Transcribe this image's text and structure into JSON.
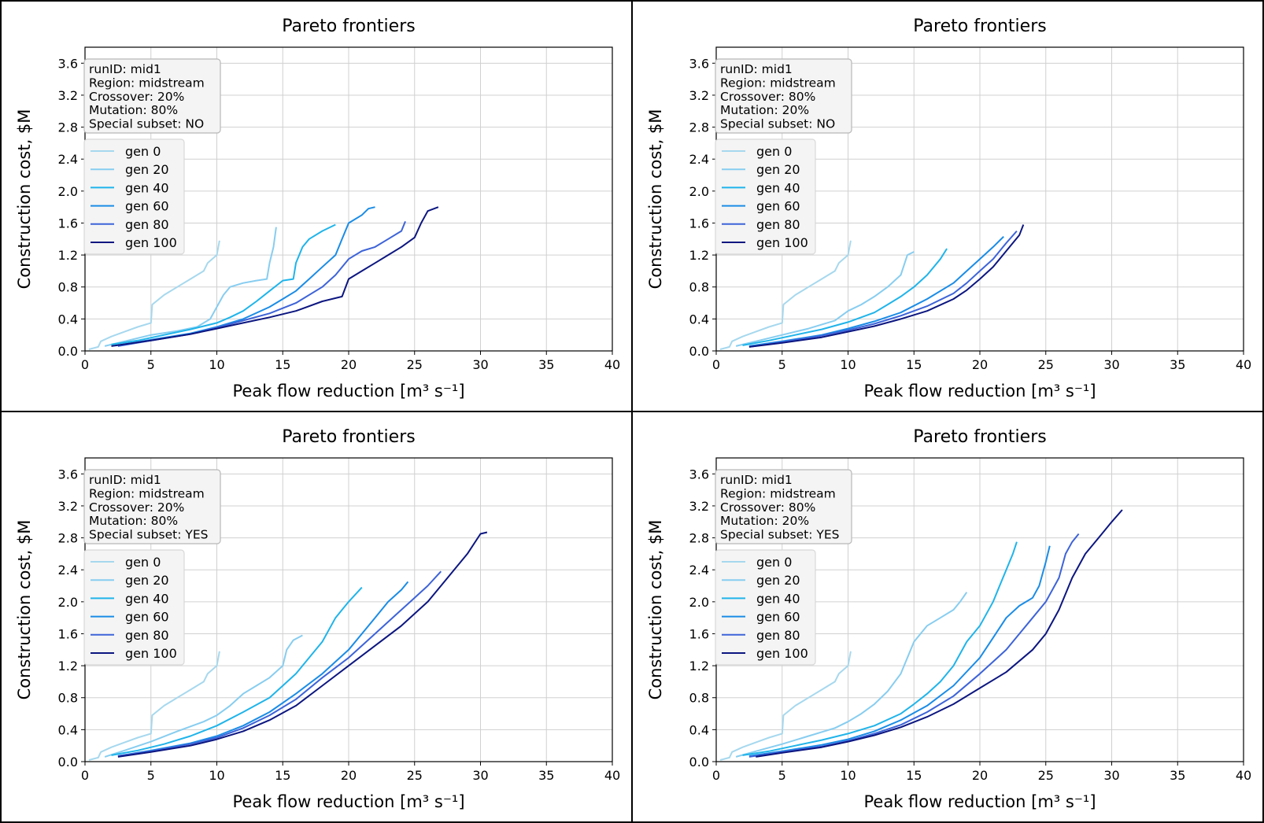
{
  "chart_data": [
    {
      "type": "line",
      "title": "Pareto frontiers",
      "xlabel": "Peak flow reduction [m³ s⁻¹]",
      "ylabel": "Construction cost, $M",
      "xlim": [
        0,
        40
      ],
      "ylim": [
        0,
        3.8
      ],
      "xticks": [
        "0",
        "5",
        "10",
        "15",
        "20",
        "25",
        "30",
        "35",
        "40"
      ],
      "yticks": [
        "0.0",
        "0.4",
        "0.8",
        "1.2",
        "1.6",
        "2.0",
        "2.4",
        "2.8",
        "3.2",
        "3.6"
      ],
      "grid": true,
      "info": [
        "runID: mid1",
        "Region: midstream",
        "Crossover: 20%",
        "Mutation: 80%",
        "Special subset: NO"
      ],
      "legend_position": "upper-left",
      "series": [
        {
          "name": "gen 0",
          "color": "#a6d8ee",
          "x": [
            0.3,
            1,
            1.2,
            2,
            3,
            4,
            5,
            5.1,
            6,
            7,
            7.5,
            8,
            9,
            9.3,
            10,
            10.2
          ],
          "y": [
            0.02,
            0.05,
            0.12,
            0.18,
            0.24,
            0.3,
            0.35,
            0.58,
            0.7,
            0.8,
            0.85,
            0.9,
            1.0,
            1.1,
            1.2,
            1.38
          ]
        },
        {
          "name": "gen 20",
          "color": "#87cdf0",
          "x": [
            1.5,
            3,
            5,
            7,
            8.5,
            9.5,
            10,
            10.5,
            11,
            12,
            13,
            13.8,
            14,
            14.3,
            14.5
          ],
          "y": [
            0.06,
            0.12,
            0.2,
            0.25,
            0.3,
            0.4,
            0.55,
            0.7,
            0.8,
            0.85,
            0.88,
            0.9,
            1.1,
            1.3,
            1.55
          ]
        },
        {
          "name": "gen 40",
          "color": "#1fb4ea",
          "x": [
            2,
            4,
            6,
            8,
            10,
            11,
            12,
            13,
            14,
            15,
            15.8,
            16,
            16.5,
            17,
            18,
            19
          ],
          "y": [
            0.08,
            0.13,
            0.2,
            0.27,
            0.35,
            0.42,
            0.5,
            0.62,
            0.75,
            0.88,
            0.9,
            1.1,
            1.3,
            1.4,
            1.5,
            1.58
          ]
        },
        {
          "name": "gen 60",
          "color": "#1a8ce6",
          "x": [
            2.5,
            5,
            8,
            10,
            12,
            14,
            15,
            16,
            17,
            18,
            19,
            19.5,
            20,
            21,
            21.5,
            22
          ],
          "y": [
            0.07,
            0.14,
            0.22,
            0.3,
            0.4,
            0.55,
            0.65,
            0.75,
            0.9,
            1.05,
            1.2,
            1.4,
            1.6,
            1.7,
            1.78,
            1.8
          ]
        },
        {
          "name": "gen 80",
          "color": "#3d63d8",
          "x": [
            2.5,
            5,
            8,
            10,
            12,
            14,
            16,
            18,
            19,
            20,
            21,
            22,
            23,
            24,
            24.3
          ],
          "y": [
            0.06,
            0.13,
            0.21,
            0.29,
            0.38,
            0.47,
            0.6,
            0.8,
            0.95,
            1.15,
            1.25,
            1.3,
            1.4,
            1.5,
            1.62
          ]
        },
        {
          "name": "gen 100",
          "color": "#0c1680",
          "x": [
            2,
            5,
            8,
            10,
            12,
            14,
            16,
            18,
            19.5,
            20,
            21,
            22,
            23,
            24,
            25,
            25.5,
            26,
            26.8
          ],
          "y": [
            0.06,
            0.13,
            0.21,
            0.28,
            0.35,
            0.42,
            0.5,
            0.62,
            0.68,
            0.9,
            1.0,
            1.1,
            1.2,
            1.3,
            1.42,
            1.6,
            1.75,
            1.8
          ]
        }
      ]
    },
    {
      "type": "line",
      "title": "Pareto frontiers",
      "xlabel": "Peak flow reduction [m³ s⁻¹]",
      "ylabel": "Construction cost, $M",
      "xlim": [
        0,
        40
      ],
      "ylim": [
        0,
        3.8
      ],
      "xticks": [
        "0",
        "5",
        "10",
        "15",
        "20",
        "25",
        "30",
        "35",
        "40"
      ],
      "yticks": [
        "0.0",
        "0.4",
        "0.8",
        "1.2",
        "1.6",
        "2.0",
        "2.4",
        "2.8",
        "3.2",
        "3.6"
      ],
      "grid": true,
      "info": [
        "runID: mid1",
        "Region: midstream",
        "Crossover: 80%",
        "Mutation: 20%",
        "Special subset: NO"
      ],
      "legend_position": "upper-left",
      "series": [
        {
          "name": "gen 0",
          "color": "#a6d8ee",
          "x": [
            0.3,
            1,
            1.2,
            2,
            3,
            4,
            5,
            5.1,
            6,
            7,
            7.5,
            8,
            9,
            9.3,
            10,
            10.2
          ],
          "y": [
            0.02,
            0.05,
            0.12,
            0.18,
            0.24,
            0.3,
            0.35,
            0.58,
            0.7,
            0.8,
            0.85,
            0.9,
            1.0,
            1.1,
            1.2,
            1.38
          ]
        },
        {
          "name": "gen 20",
          "color": "#87cdf0",
          "x": [
            1.5,
            3,
            5,
            7,
            9,
            10,
            11,
            12,
            13,
            14,
            14.5,
            15
          ],
          "y": [
            0.06,
            0.12,
            0.2,
            0.28,
            0.38,
            0.5,
            0.58,
            0.68,
            0.8,
            0.95,
            1.2,
            1.24
          ]
        },
        {
          "name": "gen 40",
          "color": "#1fb4ea",
          "x": [
            2,
            4,
            6,
            8,
            10,
            12,
            13,
            14,
            15,
            16,
            17,
            17.5
          ],
          "y": [
            0.07,
            0.13,
            0.2,
            0.27,
            0.36,
            0.48,
            0.58,
            0.68,
            0.8,
            0.95,
            1.15,
            1.28
          ]
        },
        {
          "name": "gen 60",
          "color": "#1a8ce6",
          "x": [
            2.5,
            5,
            8,
            10,
            12,
            14,
            16,
            18,
            19,
            20,
            21,
            21.8
          ],
          "y": [
            0.06,
            0.12,
            0.2,
            0.28,
            0.37,
            0.48,
            0.65,
            0.85,
            1.0,
            1.15,
            1.3,
            1.43
          ]
        },
        {
          "name": "gen 80",
          "color": "#3d63d8",
          "x": [
            2.5,
            5,
            8,
            10,
            12,
            14,
            16,
            18,
            19,
            20,
            21,
            22,
            22.8
          ],
          "y": [
            0.05,
            0.11,
            0.19,
            0.26,
            0.34,
            0.44,
            0.56,
            0.72,
            0.85,
            1.0,
            1.15,
            1.35,
            1.5
          ]
        },
        {
          "name": "gen 100",
          "color": "#0c1680",
          "x": [
            2.5,
            5,
            8,
            10,
            12,
            14,
            16,
            18,
            19,
            20,
            21,
            22,
            23,
            23.3
          ],
          "y": [
            0.05,
            0.1,
            0.17,
            0.24,
            0.31,
            0.4,
            0.5,
            0.65,
            0.76,
            0.9,
            1.05,
            1.25,
            1.45,
            1.58
          ]
        }
      ]
    },
    {
      "type": "line",
      "title": "Pareto frontiers",
      "xlabel": "Peak flow reduction [m³ s⁻¹]",
      "ylabel": "Construction cost, $M",
      "xlim": [
        0,
        40
      ],
      "ylim": [
        0,
        3.8
      ],
      "xticks": [
        "0",
        "5",
        "10",
        "15",
        "20",
        "25",
        "30",
        "35",
        "40"
      ],
      "yticks": [
        "0.0",
        "0.4",
        "0.8",
        "1.2",
        "1.6",
        "2.0",
        "2.4",
        "2.8",
        "3.2",
        "3.6"
      ],
      "grid": true,
      "info": [
        "runID: mid1",
        "Region: midstream",
        "Crossover: 20%",
        "Mutation: 80%",
        "Special subset: YES"
      ],
      "legend_position": "upper-left",
      "series": [
        {
          "name": "gen 0",
          "color": "#a6d8ee",
          "x": [
            0.3,
            1,
            1.2,
            2,
            3,
            4,
            5,
            5.1,
            6,
            7,
            7.5,
            8,
            9,
            9.3,
            10,
            10.2
          ],
          "y": [
            0.02,
            0.05,
            0.12,
            0.18,
            0.24,
            0.3,
            0.35,
            0.58,
            0.7,
            0.8,
            0.85,
            0.9,
            1.0,
            1.1,
            1.2,
            1.38
          ]
        },
        {
          "name": "gen 20",
          "color": "#87cdf0",
          "x": [
            1.5,
            3,
            5,
            7,
            9,
            10,
            11,
            12,
            13,
            14,
            15,
            15.3,
            15.8,
            16.5
          ],
          "y": [
            0.06,
            0.14,
            0.25,
            0.38,
            0.5,
            0.58,
            0.7,
            0.85,
            0.95,
            1.05,
            1.2,
            1.4,
            1.52,
            1.58
          ]
        },
        {
          "name": "gen 40",
          "color": "#1fb4ea",
          "x": [
            2,
            4,
            6,
            8,
            10,
            12,
            14,
            15,
            16,
            17,
            18,
            19,
            19.5,
            20,
            21
          ],
          "y": [
            0.08,
            0.14,
            0.22,
            0.32,
            0.45,
            0.62,
            0.8,
            0.95,
            1.1,
            1.3,
            1.5,
            1.8,
            1.9,
            2.0,
            2.18
          ]
        },
        {
          "name": "gen 60",
          "color": "#1a8ce6",
          "x": [
            2.5,
            5,
            8,
            10,
            12,
            14,
            16,
            18,
            20,
            21,
            22,
            23,
            24,
            24.5
          ],
          "y": [
            0.07,
            0.14,
            0.23,
            0.32,
            0.45,
            0.62,
            0.85,
            1.1,
            1.4,
            1.6,
            1.8,
            2.0,
            2.15,
            2.25
          ]
        },
        {
          "name": "gen 80",
          "color": "#3d63d8",
          "x": [
            2.5,
            5,
            8,
            10,
            12,
            14,
            16,
            18,
            20,
            22,
            24,
            25,
            26,
            27
          ],
          "y": [
            0.07,
            0.13,
            0.22,
            0.3,
            0.42,
            0.58,
            0.78,
            1.05,
            1.3,
            1.6,
            1.9,
            2.05,
            2.2,
            2.38
          ]
        },
        {
          "name": "gen 100",
          "color": "#0c1680",
          "x": [
            2.5,
            5,
            8,
            10,
            12,
            14,
            16,
            18,
            20,
            22,
            24,
            26,
            27,
            28,
            29,
            30,
            30.5
          ],
          "y": [
            0.06,
            0.12,
            0.2,
            0.28,
            0.38,
            0.52,
            0.7,
            0.95,
            1.2,
            1.45,
            1.7,
            2.0,
            2.2,
            2.4,
            2.6,
            2.85,
            2.87
          ]
        }
      ]
    },
    {
      "type": "line",
      "title": "Pareto frontiers",
      "xlabel": "Peak flow reduction [m³ s⁻¹]",
      "ylabel": "Construction cost, $M",
      "xlim": [
        0,
        40
      ],
      "ylim": [
        0,
        3.8
      ],
      "xticks": [
        "0",
        "5",
        "10",
        "15",
        "20",
        "25",
        "30",
        "35",
        "40"
      ],
      "yticks": [
        "0.0",
        "0.4",
        "0.8",
        "1.2",
        "1.6",
        "2.0",
        "2.4",
        "2.8",
        "3.2",
        "3.6"
      ],
      "grid": true,
      "info": [
        "runID: mid1",
        "Region: midstream",
        "Crossover: 80%",
        "Mutation: 20%",
        "Special subset: YES"
      ],
      "legend_position": "upper-left",
      "series": [
        {
          "name": "gen 0",
          "color": "#a6d8ee",
          "x": [
            0.3,
            1,
            1.2,
            2,
            3,
            4,
            5,
            5.1,
            6,
            7,
            7.5,
            8,
            9,
            9.3,
            10,
            10.2
          ],
          "y": [
            0.02,
            0.05,
            0.12,
            0.18,
            0.24,
            0.3,
            0.35,
            0.58,
            0.7,
            0.8,
            0.85,
            0.9,
            1.0,
            1.1,
            1.2,
            1.38
          ]
        },
        {
          "name": "gen 20",
          "color": "#87cdf0",
          "x": [
            1.5,
            3,
            5,
            7,
            9,
            10,
            11,
            12,
            13,
            14,
            15,
            16,
            17,
            18,
            18.5,
            19
          ],
          "y": [
            0.06,
            0.13,
            0.22,
            0.32,
            0.42,
            0.5,
            0.6,
            0.72,
            0.88,
            1.1,
            1.5,
            1.7,
            1.8,
            1.9,
            2.0,
            2.12
          ]
        },
        {
          "name": "gen 40",
          "color": "#1fb4ea",
          "x": [
            2,
            4,
            6,
            8,
            10,
            12,
            14,
            15,
            16,
            17,
            18,
            19,
            20,
            21,
            21.5,
            22,
            22.5,
            22.8
          ],
          "y": [
            0.08,
            0.13,
            0.2,
            0.27,
            0.35,
            0.45,
            0.6,
            0.72,
            0.85,
            1.0,
            1.2,
            1.5,
            1.7,
            2.0,
            2.2,
            2.4,
            2.6,
            2.75
          ]
        },
        {
          "name": "gen 60",
          "color": "#1a8ce6",
          "x": [
            2.5,
            5,
            8,
            10,
            12,
            14,
            16,
            18,
            20,
            21,
            22,
            23,
            24,
            24.5,
            25,
            25.3
          ],
          "y": [
            0.07,
            0.13,
            0.21,
            0.28,
            0.38,
            0.52,
            0.7,
            0.95,
            1.3,
            1.55,
            1.8,
            1.95,
            2.05,
            2.2,
            2.5,
            2.7
          ]
        },
        {
          "name": "gen 80",
          "color": "#3d63d8",
          "x": [
            2.5,
            5,
            8,
            10,
            12,
            14,
            16,
            18,
            20,
            22,
            23,
            24,
            25,
            26,
            26.5,
            27,
            27.5
          ],
          "y": [
            0.06,
            0.12,
            0.19,
            0.26,
            0.35,
            0.46,
            0.62,
            0.82,
            1.1,
            1.4,
            1.6,
            1.8,
            2.0,
            2.3,
            2.6,
            2.75,
            2.85
          ]
        },
        {
          "name": "gen 100",
          "color": "#0c1680",
          "x": [
            3,
            5,
            8,
            10,
            12,
            14,
            16,
            18,
            20,
            22,
            24,
            25,
            26,
            27,
            28,
            29,
            30,
            30.8
          ],
          "y": [
            0.06,
            0.11,
            0.18,
            0.25,
            0.33,
            0.43,
            0.56,
            0.72,
            0.92,
            1.12,
            1.4,
            1.6,
            1.9,
            2.3,
            2.6,
            2.8,
            3.0,
            3.15
          ]
        }
      ]
    }
  ]
}
